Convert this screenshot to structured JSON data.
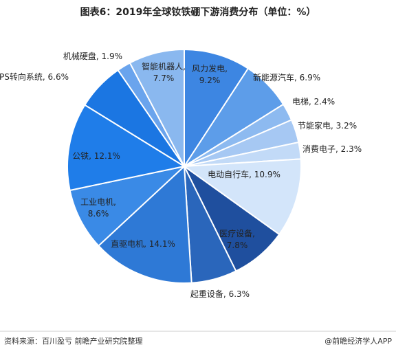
{
  "chart_data": {
    "type": "pie",
    "title": "图表6：2019年全球钕铁硼下游消费分布（单位：%）",
    "categories": [
      "风力发电",
      "新能源汽车",
      "电梯",
      "节能家电",
      "消费电子",
      "电动自行车",
      "医疗设备",
      "起重设备",
      "直驱电机",
      "工业电机",
      "公铁",
      "EPS转向系统",
      "机械硬盘",
      "智能机器人"
    ],
    "values": [
      9.2,
      6.9,
      2.4,
      3.2,
      2.3,
      10.9,
      7.8,
      6.3,
      14.1,
      8.6,
      12.1,
      6.6,
      1.9,
      7.7
    ],
    "value_labels": [
      "9.2%",
      "6.9%",
      "2.4%",
      "3.2%",
      "2.3%",
      "10.9%",
      "7.8%",
      "6.3%",
      "14.1%",
      "8.6%",
      "12.1%",
      "6.6%",
      "1.9%",
      "7.7%"
    ],
    "label_separator": ",",
    "colors": [
      "#3d86e2",
      "#5d9de9",
      "#8dbaf0",
      "#a6c8f3",
      "#c2daf7",
      "#d3e5fa",
      "#1f4f9e",
      "#2a66bb",
      "#2e79d6",
      "#3a8ae6",
      "#1f7de9",
      "#1b76e2",
      "#6aa4ed",
      "#8ab8ef"
    ],
    "source": "资料来源：百川盈亏  前瞻产业研究院整理",
    "credit": "@前瞻经济学人APP"
  }
}
